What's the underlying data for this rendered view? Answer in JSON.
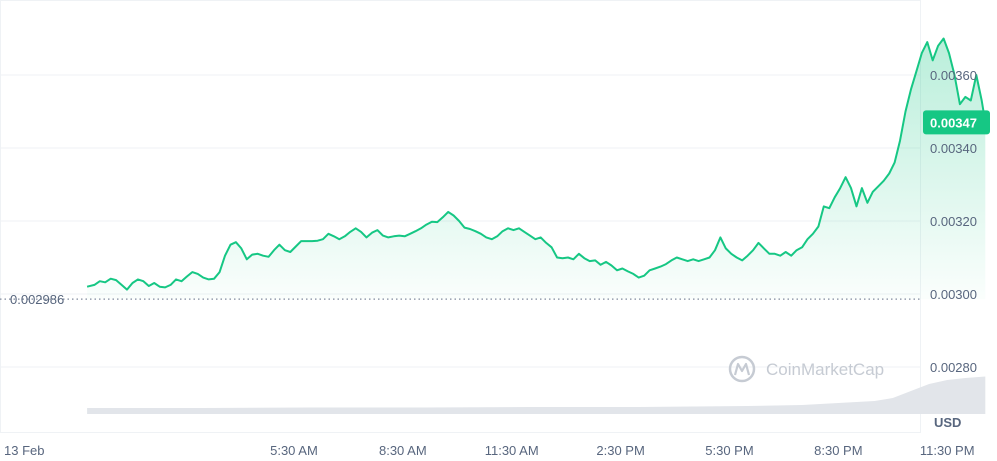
{
  "chart_data": {
    "type": "area",
    "unit_label": "USD",
    "watermark": "CoinMarketCap",
    "open_price_label": "0.002986",
    "open_price": 0.002986,
    "last_price_label": "0.00347",
    "last_price": 0.00347,
    "ylim": [
      0.00268,
      0.00375
    ],
    "y_ticks": [
      {
        "value": 0.0036,
        "label": "0.00360"
      },
      {
        "value": 0.0034,
        "label": "0.00340"
      },
      {
        "value": 0.0032,
        "label": "0.00320"
      },
      {
        "value": 0.003,
        "label": "0.00300"
      },
      {
        "value": 0.0028,
        "label": "0.00280"
      }
    ],
    "x_range_hours": [
      -2.6,
      22.75
    ],
    "x_ticks": [
      {
        "value": 0,
        "label": "13 Feb"
      },
      {
        "value": 5.5,
        "label": "5:30 AM"
      },
      {
        "value": 8.5,
        "label": "8:30 AM"
      },
      {
        "value": 11.5,
        "label": "11:30 AM"
      },
      {
        "value": 14.5,
        "label": "2:30 PM"
      },
      {
        "value": 17.5,
        "label": "5:30 PM"
      },
      {
        "value": 20.5,
        "label": "8:30 PM"
      },
      {
        "value": 23.5,
        "label": "11:30 PM"
      }
    ],
    "price_series": [
      [
        -0.2,
        0.00302
      ],
      [
        0.0,
        0.003025
      ],
      [
        0.15,
        0.003035
      ],
      [
        0.3,
        0.003032
      ],
      [
        0.45,
        0.003042
      ],
      [
        0.6,
        0.003038
      ],
      [
        0.75,
        0.003025
      ],
      [
        0.9,
        0.003012
      ],
      [
        1.05,
        0.00303
      ],
      [
        1.2,
        0.00304
      ],
      [
        1.35,
        0.003035
      ],
      [
        1.5,
        0.003022
      ],
      [
        1.65,
        0.00303
      ],
      [
        1.8,
        0.00302
      ],
      [
        1.95,
        0.003018
      ],
      [
        2.1,
        0.003025
      ],
      [
        2.25,
        0.00304
      ],
      [
        2.4,
        0.003035
      ],
      [
        2.55,
        0.003048
      ],
      [
        2.7,
        0.00306
      ],
      [
        2.85,
        0.003055
      ],
      [
        3.0,
        0.003045
      ],
      [
        3.15,
        0.00304
      ],
      [
        3.3,
        0.003042
      ],
      [
        3.45,
        0.00306
      ],
      [
        3.6,
        0.003105
      ],
      [
        3.75,
        0.003135
      ],
      [
        3.9,
        0.003142
      ],
      [
        4.05,
        0.003125
      ],
      [
        4.2,
        0.003095
      ],
      [
        4.35,
        0.003108
      ],
      [
        4.5,
        0.00311
      ],
      [
        4.65,
        0.003105
      ],
      [
        4.8,
        0.003102
      ],
      [
        4.95,
        0.00312
      ],
      [
        5.1,
        0.003135
      ],
      [
        5.25,
        0.00312
      ],
      [
        5.4,
        0.003115
      ],
      [
        5.55,
        0.00313
      ],
      [
        5.7,
        0.003145
      ],
      [
        5.85,
        0.003145
      ],
      [
        6.0,
        0.003145
      ],
      [
        6.15,
        0.003146
      ],
      [
        6.3,
        0.00315
      ],
      [
        6.45,
        0.003165
      ],
      [
        6.6,
        0.003158
      ],
      [
        6.75,
        0.00315
      ],
      [
        6.9,
        0.003158
      ],
      [
        7.05,
        0.00317
      ],
      [
        7.2,
        0.00318
      ],
      [
        7.35,
        0.00317
      ],
      [
        7.5,
        0.003155
      ],
      [
        7.65,
        0.003168
      ],
      [
        7.8,
        0.003175
      ],
      [
        7.95,
        0.00316
      ],
      [
        8.1,
        0.003155
      ],
      [
        8.25,
        0.003158
      ],
      [
        8.4,
        0.00316
      ],
      [
        8.55,
        0.003158
      ],
      [
        8.7,
        0.003165
      ],
      [
        8.85,
        0.003172
      ],
      [
        9.0,
        0.00318
      ],
      [
        9.15,
        0.00319
      ],
      [
        9.3,
        0.003198
      ],
      [
        9.45,
        0.003197
      ],
      [
        9.6,
        0.00321
      ],
      [
        9.75,
        0.003225
      ],
      [
        9.9,
        0.003215
      ],
      [
        10.05,
        0.0032
      ],
      [
        10.2,
        0.003182
      ],
      [
        10.35,
        0.003178
      ],
      [
        10.5,
        0.003172
      ],
      [
        10.65,
        0.003165
      ],
      [
        10.8,
        0.003155
      ],
      [
        10.95,
        0.00315
      ],
      [
        11.1,
        0.003158
      ],
      [
        11.25,
        0.003172
      ],
      [
        11.4,
        0.00318
      ],
      [
        11.55,
        0.003175
      ],
      [
        11.7,
        0.00318
      ],
      [
        11.85,
        0.00317
      ],
      [
        12.0,
        0.00316
      ],
      [
        12.15,
        0.00315
      ],
      [
        12.3,
        0.003155
      ],
      [
        12.45,
        0.00314
      ],
      [
        12.6,
        0.003128
      ],
      [
        12.75,
        0.0031
      ],
      [
        12.9,
        0.003098
      ],
      [
        13.05,
        0.0031
      ],
      [
        13.2,
        0.003095
      ],
      [
        13.35,
        0.00311
      ],
      [
        13.5,
        0.003098
      ],
      [
        13.65,
        0.00309
      ],
      [
        13.8,
        0.003092
      ],
      [
        13.95,
        0.00308
      ],
      [
        14.1,
        0.003088
      ],
      [
        14.25,
        0.003078
      ],
      [
        14.4,
        0.003065
      ],
      [
        14.55,
        0.00307
      ],
      [
        14.7,
        0.003062
      ],
      [
        14.85,
        0.003055
      ],
      [
        15.0,
        0.003045
      ],
      [
        15.15,
        0.00305
      ],
      [
        15.3,
        0.003065
      ],
      [
        15.45,
        0.00307
      ],
      [
        15.6,
        0.003075
      ],
      [
        15.75,
        0.003082
      ],
      [
        15.9,
        0.003092
      ],
      [
        16.05,
        0.0031
      ],
      [
        16.2,
        0.003095
      ],
      [
        16.35,
        0.00309
      ],
      [
        16.5,
        0.003095
      ],
      [
        16.65,
        0.00309
      ],
      [
        16.8,
        0.003095
      ],
      [
        16.95,
        0.0031
      ],
      [
        17.1,
        0.00312
      ],
      [
        17.25,
        0.003155
      ],
      [
        17.4,
        0.003125
      ],
      [
        17.55,
        0.00311
      ],
      [
        17.7,
        0.0031
      ],
      [
        17.85,
        0.003092
      ],
      [
        18.0,
        0.003105
      ],
      [
        18.15,
        0.00312
      ],
      [
        18.3,
        0.00314
      ],
      [
        18.45,
        0.003125
      ],
      [
        18.6,
        0.00311
      ],
      [
        18.75,
        0.00311
      ],
      [
        18.9,
        0.003105
      ],
      [
        19.05,
        0.003115
      ],
      [
        19.2,
        0.003105
      ],
      [
        19.35,
        0.00312
      ],
      [
        19.5,
        0.003128
      ],
      [
        19.65,
        0.00315
      ],
      [
        19.8,
        0.003165
      ],
      [
        19.95,
        0.003185
      ],
      [
        20.1,
        0.00324
      ],
      [
        20.25,
        0.003235
      ],
      [
        20.4,
        0.003265
      ],
      [
        20.55,
        0.00329
      ],
      [
        20.7,
        0.00332
      ],
      [
        20.85,
        0.00329
      ],
      [
        21.0,
        0.00324
      ],
      [
        21.15,
        0.00329
      ],
      [
        21.3,
        0.00325
      ],
      [
        21.45,
        0.00328
      ],
      [
        21.6,
        0.003295
      ],
      [
        21.75,
        0.00331
      ],
      [
        21.9,
        0.00333
      ],
      [
        22.05,
        0.00336
      ],
      [
        22.2,
        0.00342
      ],
      [
        22.35,
        0.0035
      ],
      [
        22.5,
        0.00356
      ],
      [
        22.65,
        0.00361
      ],
      [
        22.8,
        0.00366
      ],
      [
        22.95,
        0.00369
      ],
      [
        23.1,
        0.00364
      ],
      [
        23.25,
        0.00368
      ],
      [
        23.4,
        0.0037
      ],
      [
        23.55,
        0.00366
      ],
      [
        23.7,
        0.0036
      ],
      [
        23.85,
        0.00352
      ],
      [
        24.0,
        0.00354
      ],
      [
        24.15,
        0.00353
      ],
      [
        24.3,
        0.0036
      ],
      [
        24.45,
        0.00353
      ],
      [
        24.55,
        0.00347
      ]
    ],
    "volume_relative": [
      [
        -0.2,
        0.12
      ],
      [
        3.0,
        0.12
      ],
      [
        6.0,
        0.13
      ],
      [
        9.0,
        0.13
      ],
      [
        12.0,
        0.14
      ],
      [
        15.0,
        0.14
      ],
      [
        18.0,
        0.16
      ],
      [
        19.5,
        0.18
      ],
      [
        20.5,
        0.22
      ],
      [
        21.5,
        0.26
      ],
      [
        22.0,
        0.32
      ],
      [
        22.5,
        0.46
      ],
      [
        23.0,
        0.6
      ],
      [
        23.5,
        0.68
      ],
      [
        24.0,
        0.72
      ],
      [
        24.55,
        0.75
      ]
    ]
  },
  "colors": {
    "line": "#16c784",
    "area_top": "#16c784",
    "grid": "#eff2f5",
    "axis_text": "#58667e",
    "open_line": "#808a9d",
    "volume": "#e2e5ea",
    "last_badge": "#16c784",
    "watermark": "#c6cbd3"
  }
}
